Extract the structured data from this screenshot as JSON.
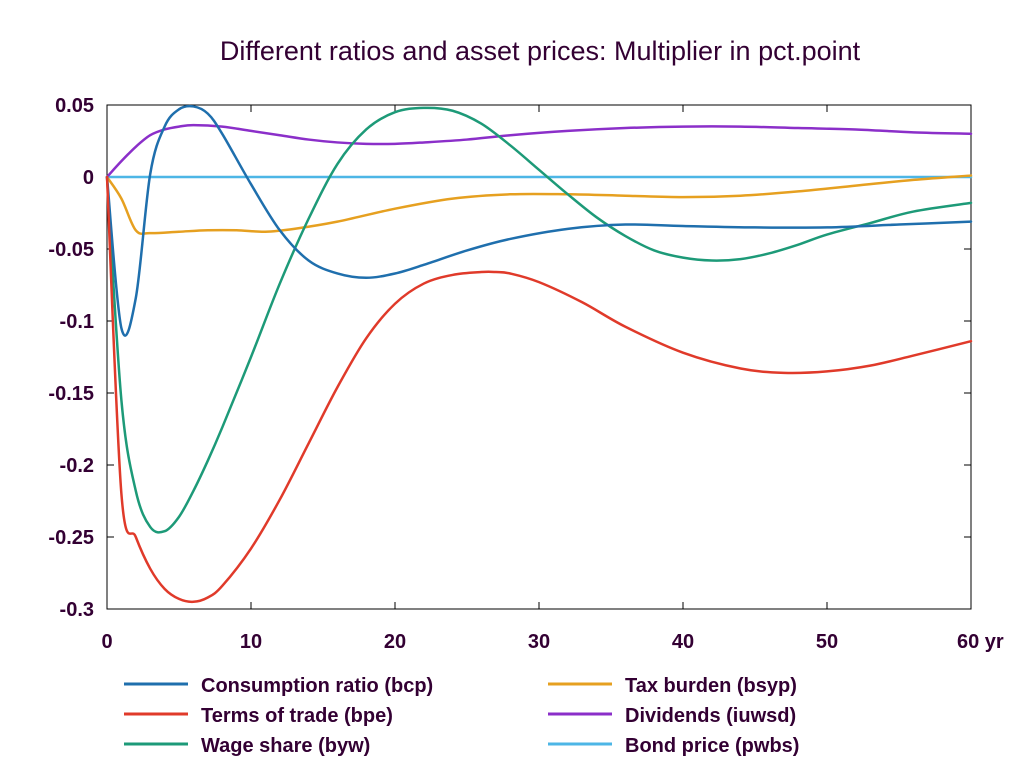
{
  "chart_data": {
    "type": "line",
    "title": "Different ratios and asset prices: Multiplier in pct.point",
    "xlabel": "",
    "ylabel": "",
    "xlim": [
      0,
      60
    ],
    "ylim": [
      -0.3,
      0.05
    ],
    "x_unit_label": "yr",
    "x_ticks": [
      0,
      10,
      20,
      30,
      40,
      50,
      60
    ],
    "x_tick_labels": [
      "0",
      "10",
      "20",
      "30",
      "40",
      "50",
      "60 yr"
    ],
    "y_ticks": [
      0.05,
      0,
      -0.05,
      -0.1,
      -0.15,
      -0.2,
      -0.25,
      -0.3
    ],
    "y_tick_labels": [
      "0.05",
      "0",
      "-0.05",
      "-0.1",
      "-0.15",
      "-0.2",
      "-0.25",
      "-0.3"
    ],
    "zero_line": true,
    "grid": false,
    "legend_position": "bottom",
    "series": [
      {
        "name": "Consumption ratio (bcp)",
        "color": "#1f6fad",
        "points": [
          [
            0,
            0
          ],
          [
            1,
            -0.105
          ],
          [
            2,
            -0.084
          ],
          [
            3,
            0.002
          ],
          [
            4,
            0.035
          ],
          [
            5,
            0.047
          ],
          [
            6,
            0.049
          ],
          [
            7,
            0.044
          ],
          [
            8,
            0.03
          ],
          [
            10,
            -0.005
          ],
          [
            12,
            -0.037
          ],
          [
            14,
            -0.058
          ],
          [
            16,
            -0.067
          ],
          [
            18,
            -0.07
          ],
          [
            20,
            -0.067
          ],
          [
            22,
            -0.061
          ],
          [
            25,
            -0.051
          ],
          [
            28,
            -0.043
          ],
          [
            32,
            -0.036
          ],
          [
            36,
            -0.033
          ],
          [
            40,
            -0.034
          ],
          [
            45,
            -0.035
          ],
          [
            50,
            -0.035
          ],
          [
            55,
            -0.033
          ],
          [
            60,
            -0.031
          ]
        ]
      },
      {
        "name": "Terms of trade (bpe)",
        "color": "#e03a2a",
        "points": [
          [
            0,
            0
          ],
          [
            1,
            -0.22
          ],
          [
            2,
            -0.25
          ],
          [
            3,
            -0.272
          ],
          [
            4,
            -0.286
          ],
          [
            5,
            -0.293
          ],
          [
            6,
            -0.295
          ],
          [
            7,
            -0.292
          ],
          [
            8,
            -0.284
          ],
          [
            10,
            -0.258
          ],
          [
            12,
            -0.224
          ],
          [
            14,
            -0.185
          ],
          [
            16,
            -0.146
          ],
          [
            18,
            -0.112
          ],
          [
            20,
            -0.088
          ],
          [
            22,
            -0.074
          ],
          [
            24,
            -0.068
          ],
          [
            26,
            -0.066
          ],
          [
            27,
            -0.066
          ],
          [
            28,
            -0.067
          ],
          [
            30,
            -0.073
          ],
          [
            33,
            -0.087
          ],
          [
            36,
            -0.104
          ],
          [
            40,
            -0.122
          ],
          [
            44,
            -0.133
          ],
          [
            47,
            -0.136
          ],
          [
            50,
            -0.135
          ],
          [
            53,
            -0.131
          ],
          [
            56,
            -0.124
          ],
          [
            60,
            -0.114
          ]
        ]
      },
      {
        "name": "Wage share (byw)",
        "color": "#1d9a78",
        "points": [
          [
            0,
            0
          ],
          [
            1,
            -0.155
          ],
          [
            2,
            -0.218
          ],
          [
            3,
            -0.243
          ],
          [
            4,
            -0.246
          ],
          [
            5,
            -0.236
          ],
          [
            6,
            -0.218
          ],
          [
            7,
            -0.197
          ],
          [
            8,
            -0.174
          ],
          [
            10,
            -0.125
          ],
          [
            12,
            -0.074
          ],
          [
            14,
            -0.029
          ],
          [
            16,
            0.009
          ],
          [
            18,
            0.033
          ],
          [
            20,
            0.045
          ],
          [
            22,
            0.048
          ],
          [
            24,
            0.046
          ],
          [
            26,
            0.037
          ],
          [
            28,
            0.022
          ],
          [
            30,
            0.005
          ],
          [
            32,
            -0.012
          ],
          [
            34,
            -0.028
          ],
          [
            36,
            -0.041
          ],
          [
            38,
            -0.051
          ],
          [
            40,
            -0.056
          ],
          [
            42,
            -0.058
          ],
          [
            44,
            -0.057
          ],
          [
            46,
            -0.053
          ],
          [
            48,
            -0.047
          ],
          [
            50,
            -0.04
          ],
          [
            53,
            -0.032
          ],
          [
            56,
            -0.024
          ],
          [
            60,
            -0.018
          ]
        ]
      },
      {
        "name": "Tax burden (bsyp)",
        "color": "#e6a020",
        "points": [
          [
            0,
            0
          ],
          [
            1,
            -0.015
          ],
          [
            2,
            -0.037
          ],
          [
            3,
            -0.039
          ],
          [
            5,
            -0.038
          ],
          [
            7,
            -0.037
          ],
          [
            9,
            -0.037
          ],
          [
            11,
            -0.038
          ],
          [
            13,
            -0.036
          ],
          [
            16,
            -0.031
          ],
          [
            20,
            -0.022
          ],
          [
            24,
            -0.015
          ],
          [
            28,
            -0.012
          ],
          [
            32,
            -0.012
          ],
          [
            36,
            -0.013
          ],
          [
            40,
            -0.014
          ],
          [
            44,
            -0.013
          ],
          [
            48,
            -0.01
          ],
          [
            52,
            -0.006
          ],
          [
            56,
            -0.002
          ],
          [
            60,
            0.001
          ]
        ]
      },
      {
        "name": "Dividends (iuwsd)",
        "color": "#8b2fc9",
        "points": [
          [
            0,
            0
          ],
          [
            1,
            0.011
          ],
          [
            2,
            0.021
          ],
          [
            3,
            0.029
          ],
          [
            4,
            0.033
          ],
          [
            5,
            0.035
          ],
          [
            6,
            0.036
          ],
          [
            8,
            0.035
          ],
          [
            10,
            0.032
          ],
          [
            12,
            0.029
          ],
          [
            14,
            0.026
          ],
          [
            16,
            0.024
          ],
          [
            18,
            0.023
          ],
          [
            20,
            0.023
          ],
          [
            22,
            0.024
          ],
          [
            25,
            0.026
          ],
          [
            28,
            0.029
          ],
          [
            32,
            0.032
          ],
          [
            36,
            0.034
          ],
          [
            40,
            0.035
          ],
          [
            44,
            0.035
          ],
          [
            48,
            0.034
          ],
          [
            52,
            0.033
          ],
          [
            56,
            0.031
          ],
          [
            60,
            0.03
          ]
        ]
      },
      {
        "name": "Bond price (pwbs)",
        "color": "#4db6e6",
        "points": [
          [
            0,
            0
          ],
          [
            60,
            0
          ]
        ]
      }
    ]
  }
}
